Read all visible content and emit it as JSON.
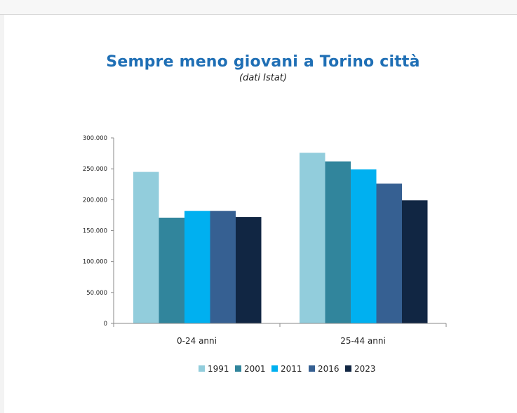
{
  "chart_data": {
    "type": "bar",
    "title": "Sempre meno giovani a Torino città",
    "subtitle": "(dati Istat)",
    "xlabel": "",
    "ylabel": "",
    "categories": [
      "0-24 anni",
      "25-44 anni"
    ],
    "series": [
      {
        "name": "1991",
        "values": [
          245000,
          276000
        ],
        "color": "#92cddc"
      },
      {
        "name": "2001",
        "values": [
          171000,
          262000
        ],
        "color": "#31859c"
      },
      {
        "name": "2011",
        "values": [
          182000,
          249000
        ],
        "color": "#00b0f0"
      },
      {
        "name": "2016",
        "values": [
          182000,
          226000
        ],
        "color": "#366092"
      },
      {
        "name": "2023",
        "values": [
          172000,
          199000
        ],
        "color": "#112643"
      }
    ],
    "ylim": [
      0,
      300000
    ],
    "yticks": [
      0,
      50000,
      100000,
      150000,
      200000,
      250000,
      300000
    ],
    "ytick_labels": [
      "0",
      "50.000",
      "100.000",
      "150.000",
      "200.000",
      "250.000",
      "300.000"
    ],
    "grid": false,
    "legend_position": "bottom"
  }
}
